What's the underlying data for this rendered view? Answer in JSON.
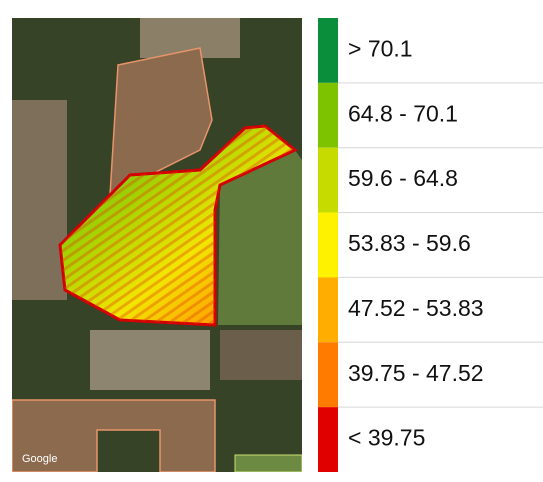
{
  "map": {
    "attribution": "Google"
  },
  "legend": {
    "items": [
      {
        "label": "> 70.1",
        "color": "#0b8e3b"
      },
      {
        "label": "64.8 - 70.1",
        "color": "#7dc300"
      },
      {
        "label": "59.6 - 64.8",
        "color": "#c6db00"
      },
      {
        "label": "53.83 - 59.6",
        "color": "#fff200"
      },
      {
        "label": "47.52 - 53.83",
        "color": "#ffae00"
      },
      {
        "label": "39.75 - 47.52",
        "color": "#ff7b00"
      },
      {
        "label": "< 39.75",
        "color": "#e10000"
      }
    ]
  }
}
